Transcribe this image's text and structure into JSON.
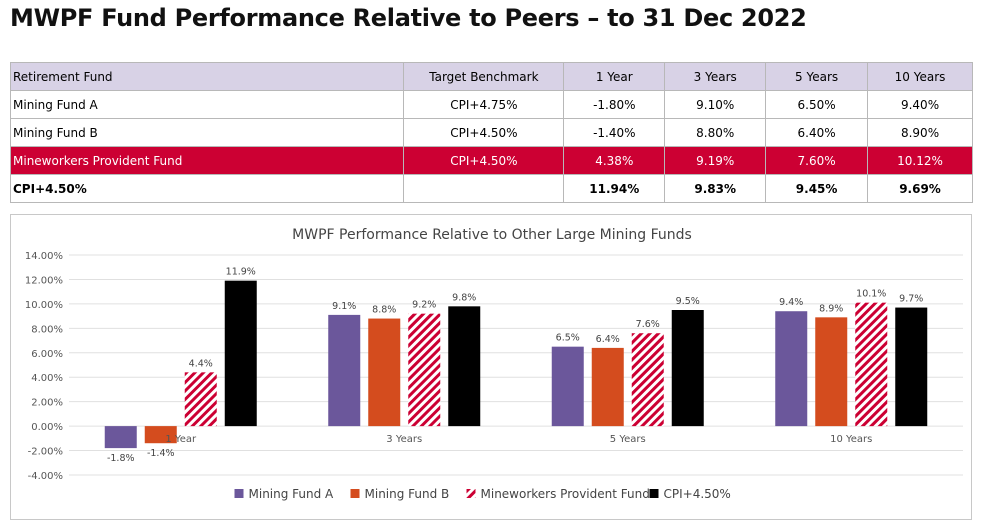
{
  "page": {
    "title": "MWPF Fund Performance Relative to Peers – to 31 Dec 2022"
  },
  "table": {
    "headers": [
      "Retirement Fund",
      "Target Benchmark",
      "1 Year",
      "3 Years",
      "5 Years",
      "10 Years"
    ],
    "rows": [
      {
        "cells": [
          "Mining Fund A",
          "CPI+4.75%",
          "-1.80%",
          "9.10%",
          "6.50%",
          "9.40%"
        ]
      },
      {
        "cells": [
          "Mining Fund B",
          "CPI+4.50%",
          "-1.40%",
          "8.80%",
          "6.40%",
          "8.90%"
        ]
      },
      {
        "cells": [
          "Mineworkers Provident Fund",
          "CPI+4.50%",
          "4.38%",
          "9.19%",
          "7.60%",
          "10.12%"
        ],
        "highlight_color": "#cc0033"
      },
      {
        "cells": [
          "CPI+4.50%",
          "",
          "11.94%",
          "9.83%",
          "9.45%",
          "9.69%"
        ]
      }
    ],
    "header_color": "#d8d2e6"
  },
  "chart_data": {
    "type": "bar",
    "title": "MWPF Performance Relative to Other Large Mining Funds",
    "categories": [
      "1 Year",
      "3 Years",
      "5 Years",
      "10 Years"
    ],
    "series": [
      {
        "name": "Mining Fund A",
        "values": [
          -1.8,
          9.1,
          6.5,
          9.4
        ],
        "labels": [
          "-1.8%",
          "9.1%",
          "6.5%",
          "9.4%"
        ],
        "color": "#6b579b",
        "pattern": "solid"
      },
      {
        "name": "Mining Fund B",
        "values": [
          -1.4,
          8.8,
          6.4,
          8.9
        ],
        "labels": [
          "-1.4%",
          "8.8%",
          "6.4%",
          "8.9%"
        ],
        "color": "#d44c1e",
        "pattern": "solid"
      },
      {
        "name": "Mineworkers Provident Fund",
        "values": [
          4.4,
          9.2,
          7.6,
          10.1
        ],
        "labels": [
          "4.4%",
          "9.2%",
          "7.6%",
          "10.1%"
        ],
        "color": "#cc0033",
        "pattern": "diagonal-stripes"
      },
      {
        "name": "CPI+4.50%",
        "values": [
          11.9,
          9.8,
          9.5,
          9.7
        ],
        "labels": [
          "11.9%",
          "9.8%",
          "9.5%",
          "9.7%"
        ],
        "color": "#000000",
        "pattern": "solid"
      }
    ],
    "yticks": [
      "14.00%",
      "12.00%",
      "10.00%",
      "8.00%",
      "6.00%",
      "4.00%",
      "2.00%",
      "0.00%",
      "-2.00%",
      "-4.00%"
    ],
    "ylim": [
      -4,
      14
    ],
    "grid": true,
    "legend_position": "bottom"
  }
}
